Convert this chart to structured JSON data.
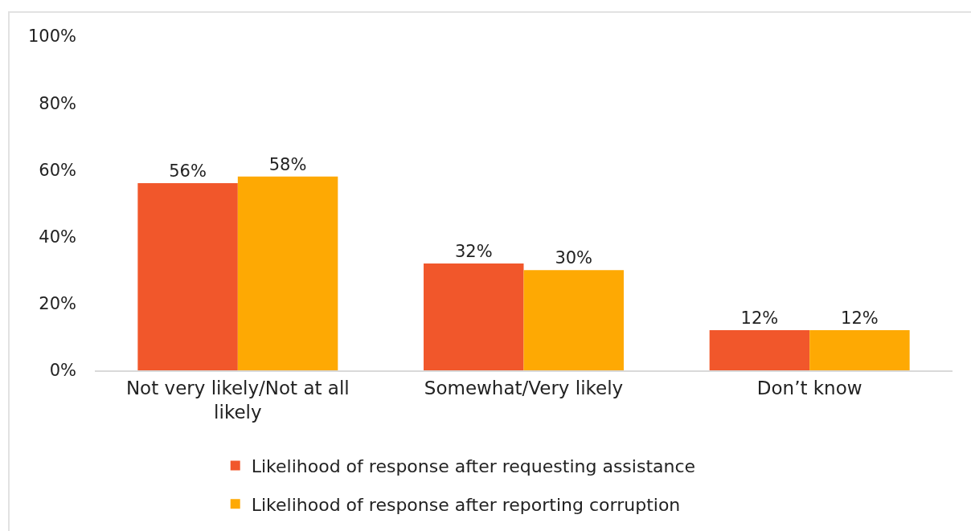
{
  "chart_data": {
    "type": "bar",
    "categories": [
      "Not very likely/Not at all likely",
      "Somewhat/Very likely",
      "Don’t know"
    ],
    "series": [
      {
        "name": "Likelihood of response after requesting assistance",
        "color": "#f1572b",
        "values": [
          56,
          32,
          12
        ],
        "value_labels": [
          "56%",
          "32%",
          "12%"
        ]
      },
      {
        "name": "Likelihood of response after reporting corruption",
        "color": "#fea903",
        "values": [
          58,
          30,
          12
        ],
        "value_labels": [
          "58%",
          "30%",
          "12%"
        ]
      }
    ],
    "ylim": [
      0,
      100
    ],
    "yticks": [
      {
        "value": 0,
        "label": "0%"
      },
      {
        "value": 20,
        "label": "20%"
      },
      {
        "value": 40,
        "label": "40%"
      },
      {
        "value": 60,
        "label": "60%"
      },
      {
        "value": 80,
        "label": "80%"
      },
      {
        "value": 100,
        "label": "100%"
      }
    ],
    "grid": false,
    "legend": "bottom"
  }
}
